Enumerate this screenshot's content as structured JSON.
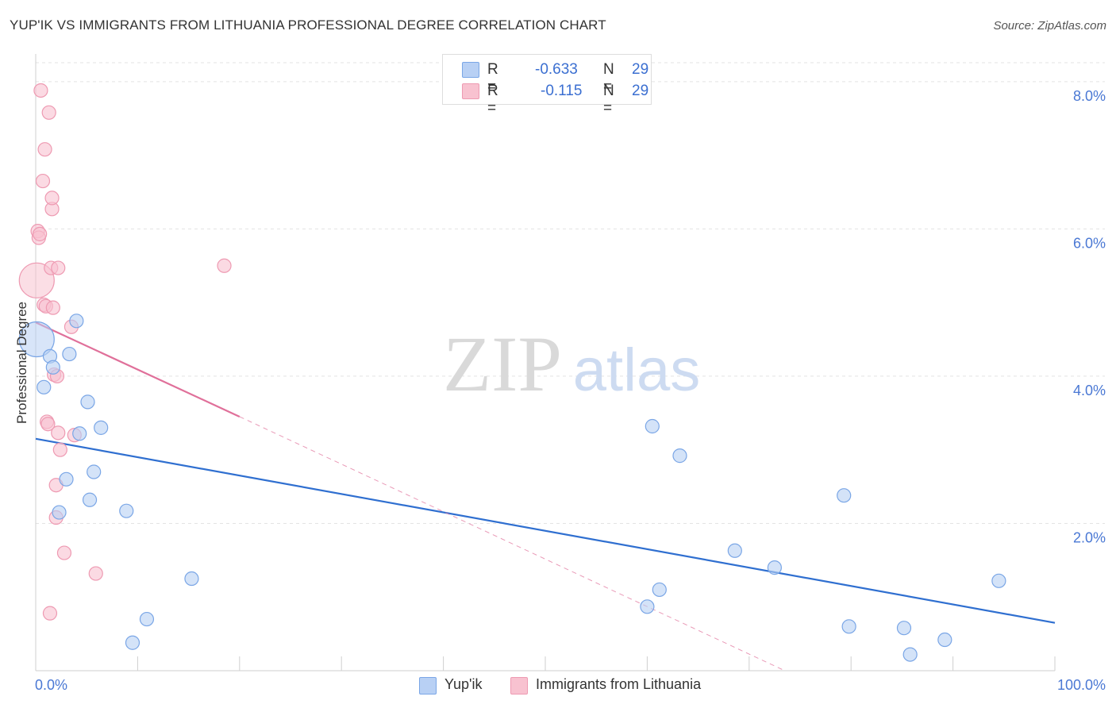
{
  "header": {
    "title": "YUP'IK VS IMMIGRANTS FROM LITHUANIA PROFESSIONAL DEGREE CORRELATION CHART",
    "source": "Source: ZipAtlas.com"
  },
  "watermark": {
    "zip": "ZIP",
    "atlas": "atlas"
  },
  "legend": {
    "rows": [
      {
        "r_label": "R =",
        "r_value": "-0.633",
        "n_label": "N =",
        "n_value": "29"
      },
      {
        "r_label": "R =",
        "r_value": "-0.115",
        "n_label": "N =",
        "n_value": "29"
      }
    ]
  },
  "bottom_legend": {
    "series1": "Yup'ik",
    "series2": "Immigrants from Lithuania"
  },
  "colors": {
    "blue_fill": "#b8d0f4",
    "blue_stroke": "#7aa6e6",
    "blue_line": "#2f6fd0",
    "pink_fill": "#f8c2d0",
    "pink_stroke": "#ee9ab2",
    "pink_line": "#e0709a",
    "tick_label": "#4a78d4"
  },
  "chart_data": {
    "type": "scatter",
    "title": "YUP'IK VS IMMIGRANTS FROM LITHUANIA PROFESSIONAL DEGREE CORRELATION CHART",
    "xlabel": "",
    "ylabel": "Professional Degree",
    "xlim": [
      0,
      100
    ],
    "ylim": [
      0,
      8.3
    ],
    "x_tick_labels": [
      "0.0%",
      "100.0%"
    ],
    "y_ticks": [
      2,
      4,
      6,
      8
    ],
    "y_tick_labels": [
      "2.0%",
      "4.0%",
      "6.0%",
      "8.0%"
    ],
    "grid": true,
    "legend_position": "top-center",
    "series": [
      {
        "name": "Yup'ik",
        "color": "#7aa6e6",
        "points": [
          {
            "x": 0.1,
            "y": 4.5,
            "big": true
          },
          {
            "x": 0.8,
            "y": 3.85
          },
          {
            "x": 1.4,
            "y": 4.27
          },
          {
            "x": 1.7,
            "y": 4.12
          },
          {
            "x": 2.3,
            "y": 2.15
          },
          {
            "x": 3.0,
            "y": 2.6
          },
          {
            "x": 3.3,
            "y": 4.3
          },
          {
            "x": 4.0,
            "y": 4.75
          },
          {
            "x": 4.3,
            "y": 3.22
          },
          {
            "x": 5.1,
            "y": 3.65
          },
          {
            "x": 5.3,
            "y": 2.32
          },
          {
            "x": 5.7,
            "y": 2.7
          },
          {
            "x": 6.4,
            "y": 3.3
          },
          {
            "x": 8.9,
            "y": 2.17
          },
          {
            "x": 9.5,
            "y": 0.38
          },
          {
            "x": 10.9,
            "y": 0.7
          },
          {
            "x": 15.3,
            "y": 1.25
          },
          {
            "x": 60.5,
            "y": 3.32
          },
          {
            "x": 63.2,
            "y": 2.92
          },
          {
            "x": 60.0,
            "y": 0.87
          },
          {
            "x": 61.2,
            "y": 1.1
          },
          {
            "x": 68.6,
            "y": 1.63
          },
          {
            "x": 72.5,
            "y": 1.4
          },
          {
            "x": 79.3,
            "y": 2.38
          },
          {
            "x": 79.8,
            "y": 0.6
          },
          {
            "x": 85.2,
            "y": 0.58
          },
          {
            "x": 85.8,
            "y": 0.22
          },
          {
            "x": 89.2,
            "y": 0.42
          },
          {
            "x": 94.5,
            "y": 1.22
          }
        ],
        "trend": {
          "x": [
            0,
            100
          ],
          "y": [
            3.15,
            0.65
          ]
        }
      },
      {
        "name": "Immigrants from Lithuania",
        "color": "#ee9ab2",
        "points": [
          {
            "x": 0.1,
            "y": 5.3,
            "big": true
          },
          {
            "x": 0.2,
            "y": 5.97
          },
          {
            "x": 0.3,
            "y": 5.88
          },
          {
            "x": 0.4,
            "y": 5.93
          },
          {
            "x": 0.5,
            "y": 7.88
          },
          {
            "x": 0.7,
            "y": 6.65
          },
          {
            "x": 0.8,
            "y": 4.97
          },
          {
            "x": 0.9,
            "y": 7.08
          },
          {
            "x": 1.0,
            "y": 4.95
          },
          {
            "x": 1.1,
            "y": 3.38
          },
          {
            "x": 1.2,
            "y": 3.35
          },
          {
            "x": 1.3,
            "y": 7.58
          },
          {
            "x": 1.4,
            "y": 0.78
          },
          {
            "x": 1.5,
            "y": 5.47
          },
          {
            "x": 1.6,
            "y": 6.27
          },
          {
            "x": 1.6,
            "y": 6.42
          },
          {
            "x": 1.7,
            "y": 4.93
          },
          {
            "x": 1.8,
            "y": 4.02
          },
          {
            "x": 2.0,
            "y": 2.52
          },
          {
            "x": 2.0,
            "y": 2.08
          },
          {
            "x": 2.1,
            "y": 4.0
          },
          {
            "x": 2.2,
            "y": 5.47
          },
          {
            "x": 2.2,
            "y": 3.23
          },
          {
            "x": 2.4,
            "y": 3.0
          },
          {
            "x": 2.8,
            "y": 1.6
          },
          {
            "x": 3.5,
            "y": 4.67
          },
          {
            "x": 3.8,
            "y": 3.2
          },
          {
            "x": 5.9,
            "y": 1.32
          },
          {
            "x": 18.5,
            "y": 5.5
          }
        ],
        "trend": {
          "x": [
            0,
            20
          ],
          "y": [
            4.73,
            3.45
          ]
        },
        "trend_extension": {
          "x": [
            20,
            73.5
          ],
          "y": [
            3.45,
            0
          ]
        }
      }
    ]
  }
}
